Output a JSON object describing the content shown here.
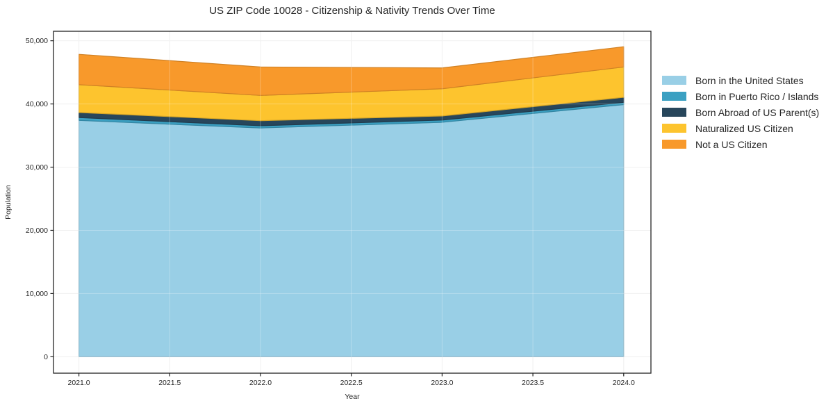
{
  "chart_data": {
    "type": "area",
    "stacked": true,
    "title": "US ZIP Code 10028 - Citizenship & Nativity Trends Over Time",
    "xlabel": "Year",
    "ylabel": "Population",
    "x": [
      2021,
      2022,
      2023,
      2024
    ],
    "series": [
      {
        "name": "Born in the United States",
        "color": "#99cfe6",
        "values": [
          37400,
          36200,
          37100,
          39900
        ]
      },
      {
        "name": "Born in Puerto Rico / Islands",
        "color": "#3ba0c2",
        "values": [
          450,
          350,
          350,
          350
        ]
      },
      {
        "name": "Born Abroad of US Parent(s)",
        "color": "#27465b",
        "values": [
          800,
          800,
          650,
          800
        ]
      },
      {
        "name": "Naturalized US Citizen",
        "color": "#fdc42e",
        "values": [
          4400,
          4000,
          4300,
          4800
        ]
      },
      {
        "name": "Not a US Citizen",
        "color": "#f8992b",
        "values": [
          4800,
          4500,
          3300,
          3200
        ]
      }
    ],
    "x_ticks": [
      {
        "value": 2021.0,
        "label": "2021.0"
      },
      {
        "value": 2021.5,
        "label": "2021.5"
      },
      {
        "value": 2022.0,
        "label": "2022.0"
      },
      {
        "value": 2022.5,
        "label": "2022.5"
      },
      {
        "value": 2023.0,
        "label": "2023.0"
      },
      {
        "value": 2023.5,
        "label": "2023.5"
      },
      {
        "value": 2024.0,
        "label": "2024.0"
      }
    ],
    "y_ticks": [
      {
        "value": 0,
        "label": "0"
      },
      {
        "value": 10000,
        "label": "10,000"
      },
      {
        "value": 20000,
        "label": "20,000"
      },
      {
        "value": 30000,
        "label": "30,000"
      },
      {
        "value": 40000,
        "label": "40,000"
      },
      {
        "value": 50000,
        "label": "50,000"
      }
    ],
    "xlim": [
      2020.86,
      2024.15
    ],
    "ylim": [
      -2600,
      51500
    ],
    "grid": true,
    "legend_position": "right-outside",
    "grid_color": "#ebebeb",
    "border_color": "#222222",
    "text_color": "#262626"
  }
}
